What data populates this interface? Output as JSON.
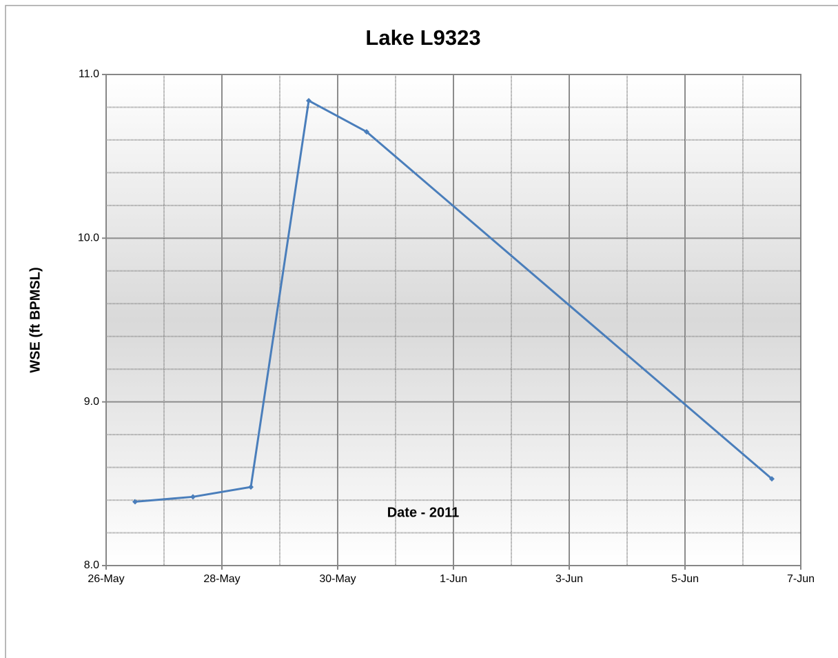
{
  "chart_data": {
    "type": "line",
    "title": "Lake L9323",
    "x_label": "Date - 2011",
    "y_label": "WSE (ft BPMSL)",
    "x": [
      "2011-05-26",
      "2011-05-27",
      "2011-05-28",
      "2011-05-29",
      "2011-05-30",
      "2011-06-06"
    ],
    "series": [
      {
        "name": "WSE",
        "color": "#4a7ebb",
        "values": [
          8.39,
          8.42,
          8.48,
          10.84,
          10.65,
          8.53
        ]
      }
    ],
    "xlim": [
      "2011-05-26",
      "2011-06-07"
    ],
    "xticks": [
      {
        "value": "2011-05-26",
        "label": "26-May"
      },
      {
        "value": "2011-05-28",
        "label": "28-May"
      },
      {
        "value": "2011-05-30",
        "label": "30-May"
      },
      {
        "value": "2011-06-01",
        "label": "1-Jun"
      },
      {
        "value": "2011-06-03",
        "label": "3-Jun"
      },
      {
        "value": "2011-06-05",
        "label": "5-Jun"
      },
      {
        "value": "2011-06-07",
        "label": "7-Jun"
      }
    ],
    "xgrid_minor": [
      "2011-05-27",
      "2011-05-29",
      "2011-05-31",
      "2011-06-02",
      "2011-06-04",
      "2011-06-06"
    ],
    "ylim": [
      8,
      11
    ],
    "yticks": [
      {
        "value": 8,
        "label": "8.0"
      },
      {
        "value": 9,
        "label": "9.0"
      },
      {
        "value": 10,
        "label": "10.0"
      },
      {
        "value": 11,
        "label": "11.0"
      }
    ],
    "ygrid_minor": [
      8.2,
      8.4,
      8.6,
      8.8,
      9.2,
      9.4,
      9.6,
      9.8,
      10.2,
      10.4,
      10.6,
      10.8
    ],
    "grid": true
  }
}
